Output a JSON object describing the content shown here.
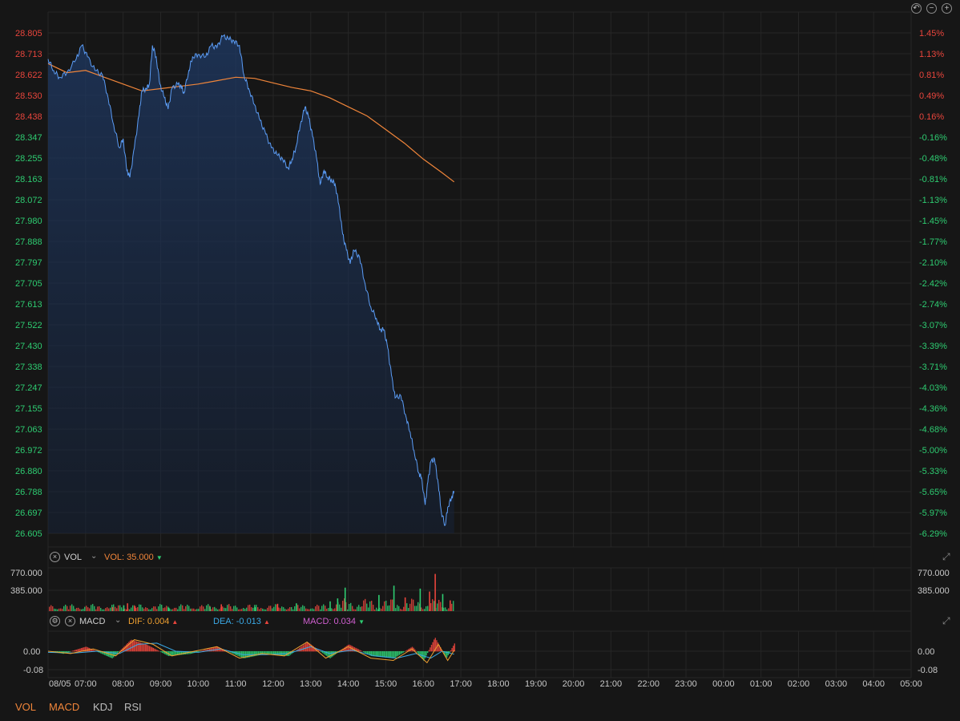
{
  "colors": {
    "bg": "#161616",
    "grid": "#262626",
    "up": "#e8453c",
    "down": "#2ecc71",
    "price_line": "#5b9cf5",
    "avg_line": "#f0853a",
    "dif": "#f0a030",
    "dea": "#3aa9e6",
    "macd": "#d05fd0"
  },
  "toolbar": {
    "undo_icon": "undo-icon",
    "zoom_out_icon": "zoom-out-icon",
    "zoom_in_icon": "zoom-in-icon"
  },
  "price_axis": {
    "left": [
      "28.805",
      "28.713",
      "28.622",
      "28.530",
      "28.438",
      "28.347",
      "28.255",
      "28.163",
      "28.072",
      "27.980",
      "27.888",
      "27.797",
      "27.705",
      "27.613",
      "27.522",
      "27.430",
      "27.338",
      "27.247",
      "27.155",
      "27.063",
      "26.972",
      "26.880",
      "26.788",
      "26.697",
      "26.605"
    ],
    "right": [
      "1.45%",
      "1.13%",
      "0.81%",
      "0.49%",
      "0.16%",
      "-0.16%",
      "-0.48%",
      "-0.81%",
      "-1.13%",
      "-1.45%",
      "-1.77%",
      "-2.10%",
      "-2.42%",
      "-2.74%",
      "-3.07%",
      "-3.39%",
      "-3.71%",
      "-4.03%",
      "-4.36%",
      "-4.68%",
      "-5.00%",
      "-5.33%",
      "-5.65%",
      "-5.97%",
      "-6.29%"
    ],
    "up_count": 5,
    "max": 28.805,
    "min": 26.605
  },
  "vol_panel": {
    "name": "VOL",
    "value_label": "VOL: 35.000",
    "axis": [
      "770.000",
      "385.000"
    ],
    "max": 770
  },
  "macd_panel": {
    "name": "MACD",
    "dif_label": "DIF: 0.004",
    "dea_label": "DEA: -0.013",
    "macd_label": "MACD: 0.034",
    "axis": [
      "0.00",
      "-0.08"
    ]
  },
  "time_axis": [
    "08/05",
    "07:00",
    "08:00",
    "09:00",
    "10:00",
    "11:00",
    "12:00",
    "13:00",
    "14:00",
    "15:00",
    "16:00",
    "17:00",
    "18:00",
    "19:00",
    "20:00",
    "21:00",
    "22:00",
    "23:00",
    "00:00",
    "01:00",
    "02:00",
    "03:00",
    "04:00",
    "05:00"
  ],
  "tabs": [
    "VOL",
    "MACD",
    "KDJ",
    "RSI"
  ],
  "chart_data": {
    "type": "line",
    "price_series": [
      {
        "t": 0.0,
        "p": 28.69
      },
      {
        "t": 0.15,
        "p": 28.64
      },
      {
        "t": 0.3,
        "p": 28.61
      },
      {
        "t": 0.5,
        "p": 28.63
      },
      {
        "t": 0.75,
        "p": 28.69
      },
      {
        "t": 0.9,
        "p": 28.75
      },
      {
        "t": 1.05,
        "p": 28.7
      },
      {
        "t": 1.25,
        "p": 28.64
      },
      {
        "t": 1.45,
        "p": 28.62
      },
      {
        "t": 1.6,
        "p": 28.52
      },
      {
        "t": 1.75,
        "p": 28.4
      },
      {
        "t": 1.9,
        "p": 28.3
      },
      {
        "t": 2.0,
        "p": 28.34
      },
      {
        "t": 2.1,
        "p": 28.2
      },
      {
        "t": 2.18,
        "p": 28.17
      },
      {
        "t": 2.3,
        "p": 28.3
      },
      {
        "t": 2.42,
        "p": 28.44
      },
      {
        "t": 2.5,
        "p": 28.55
      },
      {
        "t": 2.62,
        "p": 28.56
      },
      {
        "t": 2.7,
        "p": 28.58
      },
      {
        "t": 2.78,
        "p": 28.75
      },
      {
        "t": 2.88,
        "p": 28.7
      },
      {
        "t": 2.98,
        "p": 28.58
      },
      {
        "t": 3.1,
        "p": 28.52
      },
      {
        "t": 3.2,
        "p": 28.47
      },
      {
        "t": 3.3,
        "p": 28.56
      },
      {
        "t": 3.45,
        "p": 28.58
      },
      {
        "t": 3.55,
        "p": 28.57
      },
      {
        "t": 3.62,
        "p": 28.54
      },
      {
        "t": 3.75,
        "p": 28.64
      },
      {
        "t": 3.85,
        "p": 28.7
      },
      {
        "t": 4.0,
        "p": 28.71
      },
      {
        "t": 4.2,
        "p": 28.7
      },
      {
        "t": 4.35,
        "p": 28.75
      },
      {
        "t": 4.5,
        "p": 28.74
      },
      {
        "t": 4.65,
        "p": 28.79
      },
      {
        "t": 4.8,
        "p": 28.78
      },
      {
        "t": 4.95,
        "p": 28.77
      },
      {
        "t": 5.1,
        "p": 28.75
      },
      {
        "t": 5.22,
        "p": 28.62
      },
      {
        "t": 5.35,
        "p": 28.56
      },
      {
        "t": 5.5,
        "p": 28.49
      },
      {
        "t": 5.65,
        "p": 28.42
      },
      {
        "t": 5.8,
        "p": 28.36
      },
      {
        "t": 5.95,
        "p": 28.3
      },
      {
        "t": 6.1,
        "p": 28.27
      },
      {
        "t": 6.25,
        "p": 28.25
      },
      {
        "t": 6.4,
        "p": 28.21
      },
      {
        "t": 6.5,
        "p": 28.25
      },
      {
        "t": 6.6,
        "p": 28.3
      },
      {
        "t": 6.72,
        "p": 28.4
      },
      {
        "t": 6.85,
        "p": 28.48
      },
      {
        "t": 6.95,
        "p": 28.43
      },
      {
        "t": 7.05,
        "p": 28.35
      },
      {
        "t": 7.15,
        "p": 28.26
      },
      {
        "t": 7.25,
        "p": 28.14
      },
      {
        "t": 7.35,
        "p": 28.2
      },
      {
        "t": 7.45,
        "p": 28.17
      },
      {
        "t": 7.55,
        "p": 28.16
      },
      {
        "t": 7.65,
        "p": 28.14
      },
      {
        "t": 7.75,
        "p": 28.05
      },
      {
        "t": 7.85,
        "p": 27.92
      },
      {
        "t": 7.95,
        "p": 27.85
      },
      {
        "t": 8.05,
        "p": 27.79
      },
      {
        "t": 8.15,
        "p": 27.85
      },
      {
        "t": 8.3,
        "p": 27.82
      },
      {
        "t": 8.45,
        "p": 27.7
      },
      {
        "t": 8.6,
        "p": 27.6
      },
      {
        "t": 8.75,
        "p": 27.55
      },
      {
        "t": 8.85,
        "p": 27.5
      },
      {
        "t": 8.95,
        "p": 27.5
      },
      {
        "t": 9.05,
        "p": 27.42
      },
      {
        "t": 9.15,
        "p": 27.3
      },
      {
        "t": 9.25,
        "p": 27.2
      },
      {
        "t": 9.4,
        "p": 27.21
      },
      {
        "t": 9.55,
        "p": 27.11
      },
      {
        "t": 9.65,
        "p": 27.05
      },
      {
        "t": 9.75,
        "p": 26.97
      },
      {
        "t": 9.88,
        "p": 26.87
      },
      {
        "t": 9.95,
        "p": 26.85
      },
      {
        "t": 10.05,
        "p": 26.73
      },
      {
        "t": 10.12,
        "p": 26.83
      },
      {
        "t": 10.2,
        "p": 26.92
      },
      {
        "t": 10.3,
        "p": 26.93
      },
      {
        "t": 10.4,
        "p": 26.82
      },
      {
        "t": 10.48,
        "p": 26.7
      },
      {
        "t": 10.58,
        "p": 26.64
      },
      {
        "t": 10.65,
        "p": 26.72
      },
      {
        "t": 10.75,
        "p": 26.76
      },
      {
        "t": 10.82,
        "p": 26.79
      }
    ],
    "avg_series": [
      {
        "t": 0.0,
        "p": 28.67
      },
      {
        "t": 0.5,
        "p": 28.63
      },
      {
        "t": 1.0,
        "p": 28.64
      },
      {
        "t": 1.5,
        "p": 28.61
      },
      {
        "t": 2.0,
        "p": 28.58
      },
      {
        "t": 2.5,
        "p": 28.55
      },
      {
        "t": 3.0,
        "p": 28.56
      },
      {
        "t": 3.5,
        "p": 28.57
      },
      {
        "t": 4.0,
        "p": 28.58
      },
      {
        "t": 4.5,
        "p": 28.595
      },
      {
        "t": 5.0,
        "p": 28.61
      },
      {
        "t": 5.5,
        "p": 28.605
      },
      {
        "t": 6.0,
        "p": 28.585
      },
      {
        "t": 6.5,
        "p": 28.565
      },
      {
        "t": 7.0,
        "p": 28.55
      },
      {
        "t": 7.5,
        "p": 28.52
      },
      {
        "t": 8.0,
        "p": 28.48
      },
      {
        "t": 8.5,
        "p": 28.44
      },
      {
        "t": 9.0,
        "p": 28.38
      },
      {
        "t": 9.5,
        "p": 28.32
      },
      {
        "t": 10.0,
        "p": 28.25
      },
      {
        "t": 10.5,
        "p": 28.19
      },
      {
        "t": 10.82,
        "p": 28.15
      }
    ],
    "volume_bars": [
      {
        "t": 1.7,
        "v": 80,
        "up": true
      },
      {
        "t": 2.0,
        "v": 120,
        "up": false
      },
      {
        "t": 2.1,
        "v": 160,
        "up": true
      },
      {
        "t": 2.3,
        "v": 100,
        "up": true
      },
      {
        "t": 3.2,
        "v": 70,
        "up": false
      },
      {
        "t": 4.3,
        "v": 90,
        "up": false
      },
      {
        "t": 4.6,
        "v": 140,
        "up": true
      },
      {
        "t": 5.5,
        "v": 80,
        "up": false
      },
      {
        "t": 6.1,
        "v": 150,
        "up": true
      },
      {
        "t": 6.6,
        "v": 160,
        "up": false
      },
      {
        "t": 7.5,
        "v": 200,
        "up": false
      },
      {
        "t": 7.7,
        "v": 260,
        "up": false
      },
      {
        "t": 7.9,
        "v": 480,
        "up": false
      },
      {
        "t": 8.8,
        "v": 330,
        "up": false
      },
      {
        "t": 9.2,
        "v": 520,
        "up": false
      },
      {
        "t": 9.5,
        "v": 280,
        "up": true
      },
      {
        "t": 9.9,
        "v": 460,
        "up": false
      },
      {
        "t": 10.15,
        "v": 400,
        "up": true
      },
      {
        "t": 10.3,
        "v": 760,
        "up": true
      },
      {
        "t": 10.5,
        "v": 350,
        "up": false
      },
      {
        "t": 10.7,
        "v": 220,
        "up": true
      }
    ],
    "macd_hist": [
      {
        "t": 0.4,
        "v": -0.01
      },
      {
        "t": 1.0,
        "v": 0.02
      },
      {
        "t": 1.7,
        "v": -0.03
      },
      {
        "t": 2.2,
        "v": 0.05
      },
      {
        "t": 2.6,
        "v": 0.03
      },
      {
        "t": 3.2,
        "v": -0.02
      },
      {
        "t": 3.8,
        "v": -0.01
      },
      {
        "t": 4.5,
        "v": 0.02
      },
      {
        "t": 5.2,
        "v": -0.03
      },
      {
        "t": 5.8,
        "v": -0.01
      },
      {
        "t": 6.4,
        "v": -0.02
      },
      {
        "t": 6.9,
        "v": 0.04
      },
      {
        "t": 7.5,
        "v": -0.03
      },
      {
        "t": 8.0,
        "v": 0.03
      },
      {
        "t": 8.6,
        "v": -0.02
      },
      {
        "t": 9.2,
        "v": -0.03
      },
      {
        "t": 9.7,
        "v": 0.02
      },
      {
        "t": 10.0,
        "v": -0.04
      },
      {
        "t": 10.3,
        "v": 0.06
      },
      {
        "t": 10.6,
        "v": -0.03
      },
      {
        "t": 10.82,
        "v": 0.034
      }
    ],
    "dif_series": [
      {
        "t": 0,
        "v": 0.0
      },
      {
        "t": 0.6,
        "v": -0.01
      },
      {
        "t": 1.2,
        "v": 0.01
      },
      {
        "t": 1.8,
        "v": -0.02
      },
      {
        "t": 2.3,
        "v": 0.05
      },
      {
        "t": 2.8,
        "v": 0.03
      },
      {
        "t": 3.3,
        "v": -0.02
      },
      {
        "t": 3.9,
        "v": 0.0
      },
      {
        "t": 4.5,
        "v": 0.02
      },
      {
        "t": 5.1,
        "v": -0.03
      },
      {
        "t": 5.7,
        "v": -0.01
      },
      {
        "t": 6.3,
        "v": -0.02
      },
      {
        "t": 6.9,
        "v": 0.04
      },
      {
        "t": 7.4,
        "v": -0.03
      },
      {
        "t": 8.0,
        "v": 0.02
      },
      {
        "t": 8.6,
        "v": -0.03
      },
      {
        "t": 9.2,
        "v": -0.04
      },
      {
        "t": 9.7,
        "v": 0.01
      },
      {
        "t": 10.1,
        "v": -0.05
      },
      {
        "t": 10.4,
        "v": 0.03
      },
      {
        "t": 10.65,
        "v": -0.04
      },
      {
        "t": 10.82,
        "v": 0.004
      }
    ],
    "dea_series": [
      {
        "t": 0,
        "v": -0.005
      },
      {
        "t": 0.7,
        "v": -0.008
      },
      {
        "t": 1.3,
        "v": 0.0
      },
      {
        "t": 1.9,
        "v": -0.01
      },
      {
        "t": 2.4,
        "v": 0.03
      },
      {
        "t": 2.9,
        "v": 0.035
      },
      {
        "t": 3.4,
        "v": 0.0
      },
      {
        "t": 4.0,
        "v": -0.005
      },
      {
        "t": 4.6,
        "v": 0.01
      },
      {
        "t": 5.2,
        "v": -0.015
      },
      {
        "t": 5.8,
        "v": -0.015
      },
      {
        "t": 6.4,
        "v": -0.01
      },
      {
        "t": 7.0,
        "v": 0.02
      },
      {
        "t": 7.5,
        "v": -0.01
      },
      {
        "t": 8.1,
        "v": 0.005
      },
      {
        "t": 8.7,
        "v": -0.02
      },
      {
        "t": 9.3,
        "v": -0.03
      },
      {
        "t": 9.8,
        "v": -0.01
      },
      {
        "t": 10.2,
        "v": -0.03
      },
      {
        "t": 10.5,
        "v": 0.0
      },
      {
        "t": 10.82,
        "v": -0.013
      }
    ]
  }
}
